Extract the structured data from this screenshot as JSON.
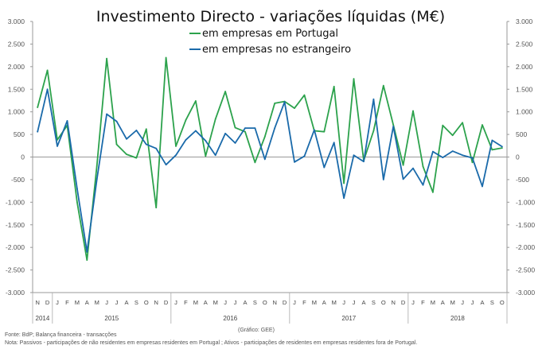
{
  "chart_data": {
    "type": "line",
    "title": "Investimento Directo - variações líquidas (M€)",
    "ylim": [
      -3000,
      3000
    ],
    "yticks": [
      3000,
      2500,
      2000,
      1500,
      1000,
      500,
      0,
      -500,
      -1000,
      -1500,
      -2000,
      -2500,
      -3000
    ],
    "ytick_labels_left": [
      "3.000",
      "2.500",
      "2.000",
      "1.500",
      "1.000",
      "500",
      "0",
      "-500",
      "-1.000",
      "-1.500",
      "-2.000",
      "-2.500",
      "-3.000"
    ],
    "ytick_labels_right": [
      "3.000",
      "2.500",
      "2.000",
      "1.500",
      "1.000",
      "500",
      "0",
      "-500",
      "-1.000",
      "-1.500",
      "-2.000",
      "-2.500",
      "-3.000"
    ],
    "months": [
      "N",
      "D",
      "J",
      "F",
      "M",
      "A",
      "M",
      "J",
      "J",
      "A",
      "S",
      "O",
      "N",
      "D",
      "J",
      "F",
      "M",
      "A",
      "M",
      "J",
      "J",
      "A",
      "S",
      "O",
      "N",
      "D",
      "J",
      "F",
      "M",
      "A",
      "M",
      "J",
      "J",
      "A",
      "S",
      "O",
      "N",
      "D",
      "J",
      "F",
      "M",
      "A",
      "M",
      "J",
      "J",
      "A",
      "S",
      "O"
    ],
    "years": [
      {
        "label": "2014",
        "start": 0,
        "count": 2
      },
      {
        "label": "2015",
        "start": 2,
        "count": 12
      },
      {
        "label": "2016",
        "start": 14,
        "count": 12
      },
      {
        "label": "2017",
        "start": 26,
        "count": 12
      },
      {
        "label": "2018",
        "start": 38,
        "count": 10
      }
    ],
    "series": [
      {
        "name": "em empresas em Portugal",
        "color": "#2ca24c",
        "values": [
          1100,
          1920,
          380,
          700,
          -1000,
          -2280,
          -200,
          2180,
          280,
          60,
          -20,
          620,
          -1120,
          2200,
          240,
          820,
          1240,
          20,
          840,
          1450,
          650,
          560,
          -120,
          450,
          1190,
          1230,
          1080,
          1370,
          580,
          560,
          1560,
          -580,
          1730,
          -80,
          580,
          1580,
          710,
          -180,
          1020,
          -210,
          -780,
          700,
          480,
          760,
          -120,
          710,
          160,
          200
        ]
      },
      {
        "name": "em empresas no estrangeiro",
        "color": "#1a6aaa",
        "values": [
          560,
          1500,
          240,
          800,
          -700,
          -2100,
          -500,
          950,
          790,
          400,
          590,
          280,
          190,
          -170,
          40,
          380,
          580,
          360,
          40,
          520,
          310,
          640,
          640,
          -50,
          640,
          1220,
          -110,
          20,
          600,
          -230,
          320,
          -910,
          40,
          -100,
          1280,
          -500,
          680,
          -490,
          -250,
          -620,
          120,
          -10,
          130,
          40,
          -20,
          -650,
          370,
          230
        ]
      }
    ],
    "source": "Fonte: BdP; Balança financeira - transacções",
    "credit": "(Gráfico: GEE)",
    "note": "Nota: Passivos - participações de não residentes em empresas residentes em Portugal ; Ativos - participações de residentes em empresas residentes fora de Portugal."
  }
}
